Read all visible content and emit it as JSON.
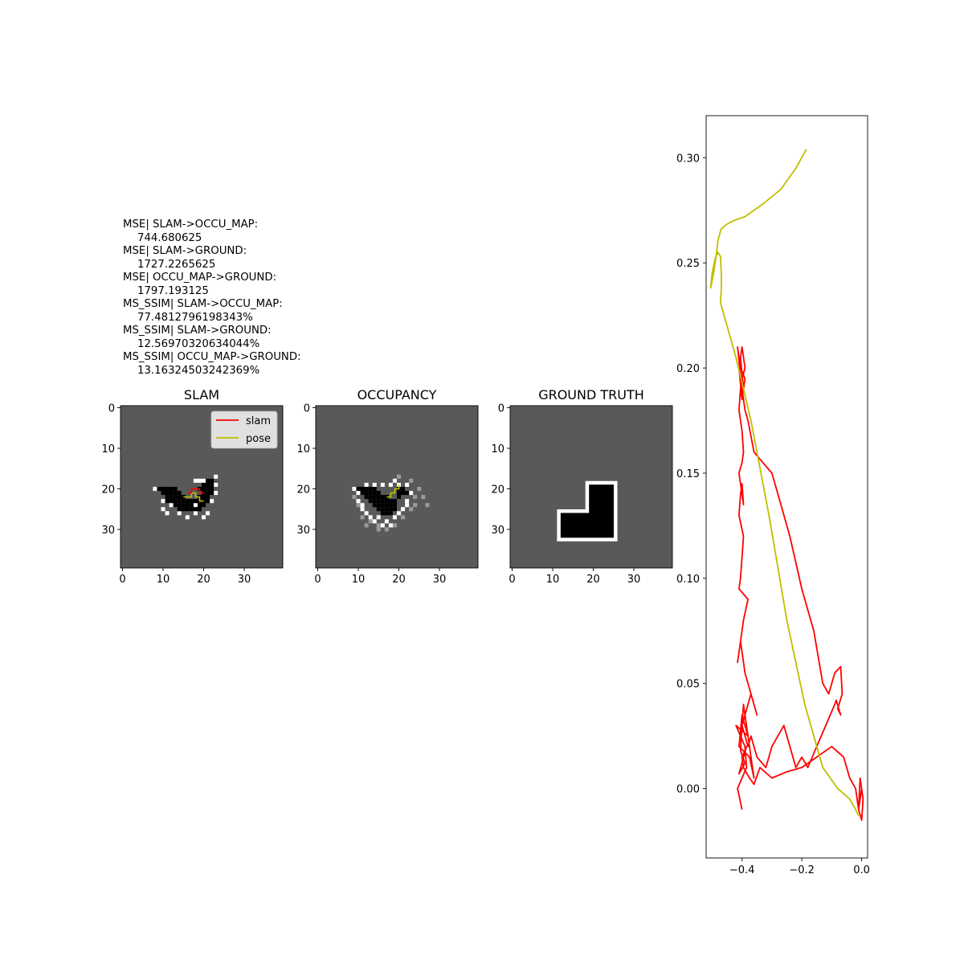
{
  "metrics": [
    {
      "label": "MSE| SLAM->OCCU_MAP:",
      "value": "744.680625"
    },
    {
      "label": "MSE| SLAM->GROUND:",
      "value": "1727.2265625"
    },
    {
      "label": "MSE| OCCU_MAP->GROUND:",
      "value": "1797.193125"
    },
    {
      "label": "MS_SSIM| SLAM->OCCU_MAP:",
      "value": "77.4812796198343%"
    },
    {
      "label": "MS_SSIM| SLAM->GROUND:",
      "value": "12.56970320634044%"
    },
    {
      "label": "MS_SSIM| OCCU_MAP->GROUND:",
      "value": "13.16324503242369%"
    }
  ],
  "colors": {
    "slam": "#ff0000",
    "pose": "#bfbf00",
    "unknown": "#595959"
  },
  "chart_data": [
    {
      "type": "heatmap",
      "title": "SLAM",
      "xticks": [
        "0",
        "10",
        "20",
        "30"
      ],
      "yticks": [
        "0",
        "10",
        "20",
        "30"
      ],
      "grid_size": [
        40,
        40
      ],
      "legend": [
        "slam",
        "pose"
      ],
      "legend_position": "upper right",
      "occupied_cells": [
        [
          9,
          20
        ],
        [
          10,
          20
        ],
        [
          11,
          20
        ],
        [
          12,
          20
        ],
        [
          13,
          20
        ],
        [
          10,
          21
        ],
        [
          11,
          21
        ],
        [
          12,
          21
        ],
        [
          13,
          21
        ],
        [
          14,
          21
        ],
        [
          11,
          22
        ],
        [
          12,
          22
        ],
        [
          13,
          22
        ],
        [
          14,
          22
        ],
        [
          15,
          22
        ],
        [
          20,
          19
        ],
        [
          21,
          19
        ],
        [
          22,
          19
        ],
        [
          19,
          20
        ],
        [
          20,
          20
        ],
        [
          21,
          20
        ],
        [
          22,
          20
        ],
        [
          20,
          21
        ],
        [
          21,
          21
        ],
        [
          22,
          21
        ],
        [
          19,
          22
        ],
        [
          20,
          22
        ],
        [
          21,
          22
        ],
        [
          11,
          23
        ],
        [
          12,
          23
        ],
        [
          13,
          23
        ],
        [
          14,
          23
        ],
        [
          15,
          23
        ],
        [
          16,
          23
        ],
        [
          17,
          23
        ],
        [
          18,
          23
        ],
        [
          19,
          23
        ],
        [
          20,
          23
        ],
        [
          21,
          23
        ],
        [
          13,
          24
        ],
        [
          14,
          24
        ],
        [
          15,
          24
        ],
        [
          16,
          24
        ],
        [
          17,
          24
        ],
        [
          19,
          24
        ],
        [
          20,
          24
        ],
        [
          14,
          25
        ],
        [
          15,
          25
        ],
        [
          16,
          25
        ],
        [
          17,
          25
        ],
        [
          18,
          25
        ],
        [
          19,
          25
        ],
        [
          21,
          18
        ],
        [
          22,
          18
        ]
      ],
      "free_cells": [
        [
          8,
          20
        ],
        [
          12,
          24
        ],
        [
          18,
          26
        ],
        [
          21,
          26
        ],
        [
          10,
          25
        ],
        [
          11,
          26
        ],
        [
          14,
          26
        ],
        [
          16,
          27
        ],
        [
          20,
          27
        ],
        [
          23,
          19
        ],
        [
          23,
          21
        ],
        [
          23,
          17
        ],
        [
          18,
          18
        ],
        [
          19,
          18
        ],
        [
          20,
          18
        ],
        [
          10,
          23
        ],
        [
          22,
          23
        ],
        [
          18,
          24
        ]
      ],
      "slam_path": [
        [
          16,
          21
        ],
        [
          17,
          21
        ],
        [
          17,
          20
        ],
        [
          19,
          20
        ],
        [
          19,
          21
        ],
        [
          20,
          21
        ]
      ],
      "pose_path": [
        [
          15,
          22
        ],
        [
          17,
          22
        ],
        [
          17,
          21
        ],
        [
          18,
          21
        ],
        [
          18,
          22
        ],
        [
          19,
          22
        ],
        [
          19,
          23
        ],
        [
          20,
          23
        ]
      ]
    },
    {
      "type": "heatmap",
      "title": "OCCUPANCY",
      "xticks": [
        "0",
        "10",
        "20",
        "30"
      ],
      "yticks": [
        "0",
        "10",
        "20",
        "30"
      ],
      "grid_size": [
        40,
        40
      ],
      "occupied_cells": [
        [
          10,
          20
        ],
        [
          11,
          20
        ],
        [
          12,
          20
        ],
        [
          13,
          20
        ],
        [
          14,
          20
        ],
        [
          11,
          21
        ],
        [
          12,
          21
        ],
        [
          13,
          21
        ],
        [
          14,
          21
        ],
        [
          15,
          21
        ],
        [
          12,
          22
        ],
        [
          13,
          22
        ],
        [
          14,
          22
        ],
        [
          15,
          22
        ],
        [
          16,
          22
        ],
        [
          17,
          22
        ],
        [
          13,
          23
        ],
        [
          14,
          23
        ],
        [
          15,
          23
        ],
        [
          16,
          23
        ],
        [
          17,
          23
        ],
        [
          18,
          23
        ],
        [
          19,
          23
        ],
        [
          14,
          24
        ],
        [
          15,
          24
        ],
        [
          16,
          24
        ],
        [
          17,
          24
        ],
        [
          18,
          24
        ],
        [
          19,
          24
        ],
        [
          15,
          25
        ],
        [
          16,
          25
        ],
        [
          17,
          25
        ],
        [
          18,
          25
        ],
        [
          19,
          25
        ],
        [
          16,
          26
        ],
        [
          17,
          26
        ],
        [
          18,
          26
        ],
        [
          20,
          20
        ],
        [
          21,
          20
        ],
        [
          20,
          21
        ],
        [
          21,
          21
        ],
        [
          22,
          21
        ],
        [
          20,
          22
        ]
      ],
      "free_cells": [
        [
          9,
          20
        ],
        [
          10,
          23
        ],
        [
          11,
          25
        ],
        [
          13,
          27
        ],
        [
          15,
          27
        ],
        [
          17,
          28
        ],
        [
          19,
          27
        ],
        [
          21,
          25
        ],
        [
          22,
          23
        ],
        [
          23,
          21
        ],
        [
          22,
          19
        ],
        [
          20,
          19
        ],
        [
          19,
          18
        ],
        [
          18,
          19
        ],
        [
          16,
          19
        ],
        [
          14,
          19
        ],
        [
          12,
          19
        ],
        [
          10,
          21
        ],
        [
          11,
          24
        ],
        [
          12,
          26
        ],
        [
          14,
          28
        ],
        [
          16,
          29
        ],
        [
          18,
          29
        ],
        [
          20,
          26
        ],
        [
          22,
          24
        ]
      ],
      "gray_cells": [
        [
          9,
          22
        ],
        [
          10,
          24
        ],
        [
          11,
          27
        ],
        [
          13,
          28
        ],
        [
          15,
          29
        ],
        [
          17,
          30
        ],
        [
          19,
          29
        ],
        [
          21,
          27
        ],
        [
          23,
          25
        ],
        [
          24,
          22
        ],
        [
          25,
          20
        ],
        [
          23,
          18
        ],
        [
          20,
          17
        ],
        [
          27,
          24
        ],
        [
          26,
          22
        ],
        [
          12,
          29
        ],
        [
          15,
          30
        ],
        [
          24,
          24
        ]
      ],
      "pose_path": [
        [
          17,
          22
        ],
        [
          18,
          22
        ],
        [
          18,
          21
        ],
        [
          19,
          21
        ],
        [
          19,
          20
        ],
        [
          20,
          20
        ],
        [
          20,
          19
        ]
      ]
    },
    {
      "type": "heatmap",
      "title": "GROUND TRUTH",
      "xticks": [
        "0",
        "10",
        "20",
        "30"
      ],
      "yticks": [
        "0",
        "10",
        "20",
        "30"
      ],
      "grid_size": [
        40,
        40
      ]
    },
    {
      "type": "line",
      "title": "",
      "xlabel": "",
      "ylabel": "",
      "xlim": [
        -0.52,
        0.02
      ],
      "ylim": [
        -0.033,
        0.32
      ],
      "xticks": [
        -0.4,
        -0.2,
        0.0
      ],
      "yticks": [
        0.0,
        0.05,
        0.1,
        0.15,
        0.2,
        0.25,
        0.3
      ],
      "xtick_labels": [
        "−0.4",
        "−0.2",
        "0.0"
      ],
      "ytick_labels": [
        "0.00",
        "0.05",
        "0.10",
        "0.15",
        "0.20",
        "0.25",
        "0.30"
      ],
      "series": [
        {
          "color": "#bfbf00",
          "x": [
            -0.185,
            -0.22,
            -0.27,
            -0.33,
            -0.39,
            -0.43,
            -0.455,
            -0.47,
            -0.48,
            -0.485,
            -0.49,
            -0.495,
            -0.502,
            -0.505,
            -0.5,
            -0.49,
            -0.48,
            -0.472,
            -0.469,
            -0.469,
            -0.472,
            -0.47,
            -0.45,
            -0.42,
            -0.37,
            -0.31,
            -0.25,
            -0.19,
            -0.13,
            -0.08,
            -0.04,
            -0.02,
            -0.01
          ],
          "y": [
            0.304,
            0.295,
            0.285,
            0.278,
            0.272,
            0.27,
            0.268,
            0.266,
            0.261,
            0.255,
            0.25,
            0.245,
            0.24,
            0.238,
            0.245,
            0.252,
            0.255,
            0.253,
            0.244,
            0.238,
            0.232,
            0.23,
            0.22,
            0.205,
            0.175,
            0.13,
            0.08,
            0.04,
            0.01,
            0.0,
            -0.005,
            -0.01,
            -0.013
          ]
        },
        {
          "color": "#ff0000",
          "x": [
            -0.4,
            -0.415,
            -0.385,
            -0.39,
            -0.42,
            -0.38,
            -0.4,
            -0.41,
            -0.375,
            -0.36,
            -0.395,
            -0.4,
            -0.37,
            -0.35,
            -0.39,
            -0.405,
            -0.415,
            -0.395,
            -0.38,
            -0.41,
            -0.405,
            -0.4,
            -0.395,
            -0.41,
            -0.405,
            -0.4,
            -0.395,
            -0.41,
            -0.4,
            -0.395,
            -0.4,
            -0.41,
            -0.405,
            -0.4,
            -0.39,
            -0.4,
            -0.405,
            -0.395,
            -0.41,
            -0.4,
            -0.39,
            -0.405,
            -0.415,
            -0.4,
            -0.39,
            -0.38,
            -0.36,
            -0.33,
            -0.3,
            -0.27,
            -0.24,
            -0.2,
            -0.16,
            -0.13,
            -0.11,
            -0.09,
            -0.07,
            -0.065,
            -0.08,
            -0.07,
            -0.085,
            -0.09,
            -0.12,
            -0.15,
            -0.18,
            -0.2,
            -0.22,
            -0.26,
            -0.28,
            -0.3,
            -0.32,
            -0.35,
            -0.37,
            -0.38,
            -0.4,
            -0.405,
            -0.39,
            -0.41,
            -0.385,
            -0.4,
            -0.395,
            -0.375,
            -0.36,
            -0.34,
            -0.3,
            -0.25,
            -0.2,
            -0.15,
            -0.1,
            -0.06,
            -0.04,
            -0.02,
            -0.01,
            0.0,
            0.005,
            -0.005,
            -0.01,
            0.0
          ],
          "y": [
            -0.01,
            0.0,
            0.01,
            0.02,
            0.03,
            0.025,
            0.035,
            0.02,
            0.015,
            0.005,
            0.04,
            0.03,
            0.045,
            0.035,
            0.055,
            0.07,
            0.06,
            0.08,
            0.09,
            0.095,
            0.1,
            0.11,
            0.12,
            0.13,
            0.14,
            0.145,
            0.135,
            0.15,
            0.155,
            0.16,
            0.17,
            0.18,
            0.19,
            0.195,
            0.2,
            0.21,
            0.205,
            0.19,
            0.2,
            0.185,
            0.195,
            0.2,
            0.21,
            0.19,
            0.18,
            0.175,
            0.16,
            0.155,
            0.15,
            0.135,
            0.12,
            0.095,
            0.075,
            0.05,
            0.045,
            0.055,
            0.058,
            0.045,
            0.038,
            0.035,
            0.042,
            0.04,
            0.03,
            0.02,
            0.01,
            0.015,
            0.01,
            0.03,
            0.025,
            0.02,
            0.01,
            0.015,
            0.025,
            0.02,
            0.03,
            0.018,
            0.012,
            0.007,
            0.02,
            0.015,
            0.01,
            0.005,
            0.002,
            0.01,
            0.005,
            0.008,
            0.01,
            0.015,
            0.02,
            0.015,
            0.005,
            0.0,
            -0.01,
            -0.015,
            -0.005,
            0.005,
            -0.01,
            0.0
          ]
        }
      ]
    }
  ]
}
